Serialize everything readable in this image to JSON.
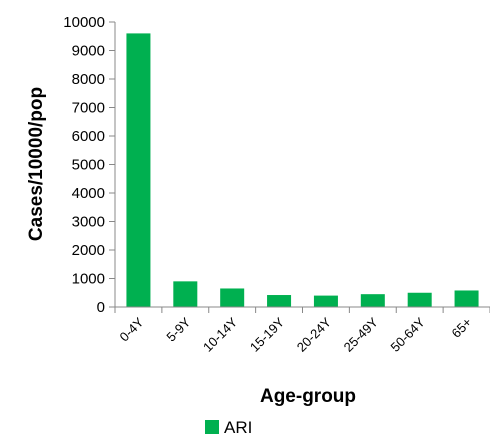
{
  "chart_data": {
    "type": "bar",
    "categories": [
      "0-4Y",
      "5-9Y",
      "10-14Y",
      "15-19Y",
      "20-24Y",
      "25-49Y",
      "50-64Y",
      "65+"
    ],
    "series": [
      {
        "name": "ARI",
        "values": [
          9600,
          900,
          650,
          420,
          400,
          450,
          500,
          580
        ]
      }
    ],
    "xlabel": "Age-group",
    "ylabel": "Cases/10000/pop",
    "ylim": [
      0,
      10000
    ],
    "yticks": [
      0,
      1000,
      2000,
      3000,
      4000,
      5000,
      6000,
      7000,
      8000,
      9000,
      10000
    ],
    "grid": false,
    "legend": "bottom",
    "colors": {
      "bar": "#00b050",
      "axis": "#888888"
    }
  }
}
